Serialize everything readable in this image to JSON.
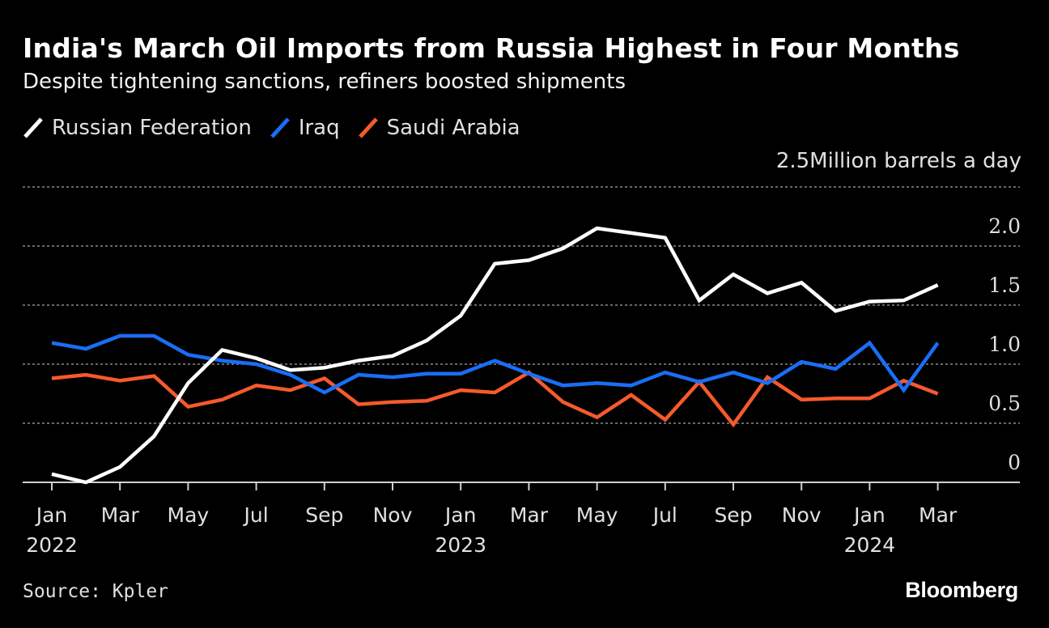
{
  "title": "India's March Oil Imports from Russia Highest in Four Months",
  "subtitle": "Despite tightening sanctions, refiners boosted shipments",
  "source": "Source: Kpler",
  "brand": "Bloomberg",
  "chart_data": {
    "type": "line",
    "unit_label": "Million barrels a day",
    "ylim": [
      0,
      2.5
    ],
    "y_ticks": [
      {
        "value": 0,
        "label": "0"
      },
      {
        "value": 0.5,
        "label": "0.5"
      },
      {
        "value": 1.0,
        "label": "1.0"
      },
      {
        "value": 1.5,
        "label": "1.5"
      },
      {
        "value": 2.0,
        "label": "2.0"
      },
      {
        "value": 2.5,
        "label": "2.5"
      }
    ],
    "grid": true,
    "legend_position": "top-left",
    "x": [
      "2022-01",
      "2022-02",
      "2022-03",
      "2022-04",
      "2022-05",
      "2022-06",
      "2022-07",
      "2022-08",
      "2022-09",
      "2022-10",
      "2022-11",
      "2022-12",
      "2023-01",
      "2023-02",
      "2023-03",
      "2023-04",
      "2023-05",
      "2023-06",
      "2023-07",
      "2023-08",
      "2023-09",
      "2023-10",
      "2023-11",
      "2023-12",
      "2024-01",
      "2024-02",
      "2024-03"
    ],
    "x_ticks": [
      {
        "x": "2022-01",
        "month": "Jan",
        "year": "2022"
      },
      {
        "x": "2022-03",
        "month": "Mar",
        "year": ""
      },
      {
        "x": "2022-05",
        "month": "May",
        "year": ""
      },
      {
        "x": "2022-07",
        "month": "Jul",
        "year": ""
      },
      {
        "x": "2022-09",
        "month": "Sep",
        "year": ""
      },
      {
        "x": "2022-11",
        "month": "Nov",
        "year": ""
      },
      {
        "x": "2023-01",
        "month": "Jan",
        "year": "2023"
      },
      {
        "x": "2023-03",
        "month": "Mar",
        "year": ""
      },
      {
        "x": "2023-05",
        "month": "May",
        "year": ""
      },
      {
        "x": "2023-07",
        "month": "Jul",
        "year": ""
      },
      {
        "x": "2023-09",
        "month": "Sep",
        "year": ""
      },
      {
        "x": "2023-11",
        "month": "Nov",
        "year": ""
      },
      {
        "x": "2024-01",
        "month": "Jan",
        "year": "2024"
      },
      {
        "x": "2024-03",
        "month": "Mar",
        "year": ""
      }
    ],
    "series": [
      {
        "name": "Russian Federation",
        "color": "#ffffff",
        "values": [
          0.07,
          0.0,
          0.13,
          0.39,
          0.84,
          1.12,
          1.05,
          0.95,
          0.97,
          1.03,
          1.07,
          1.2,
          1.41,
          1.85,
          1.88,
          1.98,
          2.15,
          2.11,
          2.07,
          1.54,
          1.76,
          1.6,
          1.69,
          1.45,
          1.53,
          1.54,
          1.67
        ]
      },
      {
        "name": "Iraq",
        "color": "#1a6ef5",
        "values": [
          1.18,
          1.13,
          1.24,
          1.24,
          1.08,
          1.03,
          1.0,
          0.91,
          0.76,
          0.91,
          0.89,
          0.92,
          0.92,
          1.03,
          0.92,
          0.82,
          0.84,
          0.82,
          0.93,
          0.85,
          0.93,
          0.84,
          1.02,
          0.96,
          1.18,
          0.78,
          1.18
        ]
      },
      {
        "name": "Saudi Arabia",
        "color": "#f55a2c",
        "values": [
          0.88,
          0.91,
          0.86,
          0.9,
          0.64,
          0.7,
          0.82,
          0.78,
          0.88,
          0.66,
          0.68,
          0.69,
          0.78,
          0.76,
          0.93,
          0.68,
          0.55,
          0.74,
          0.53,
          0.85,
          0.49,
          0.89,
          0.7,
          0.71,
          0.71,
          0.86,
          0.75
        ]
      }
    ]
  }
}
